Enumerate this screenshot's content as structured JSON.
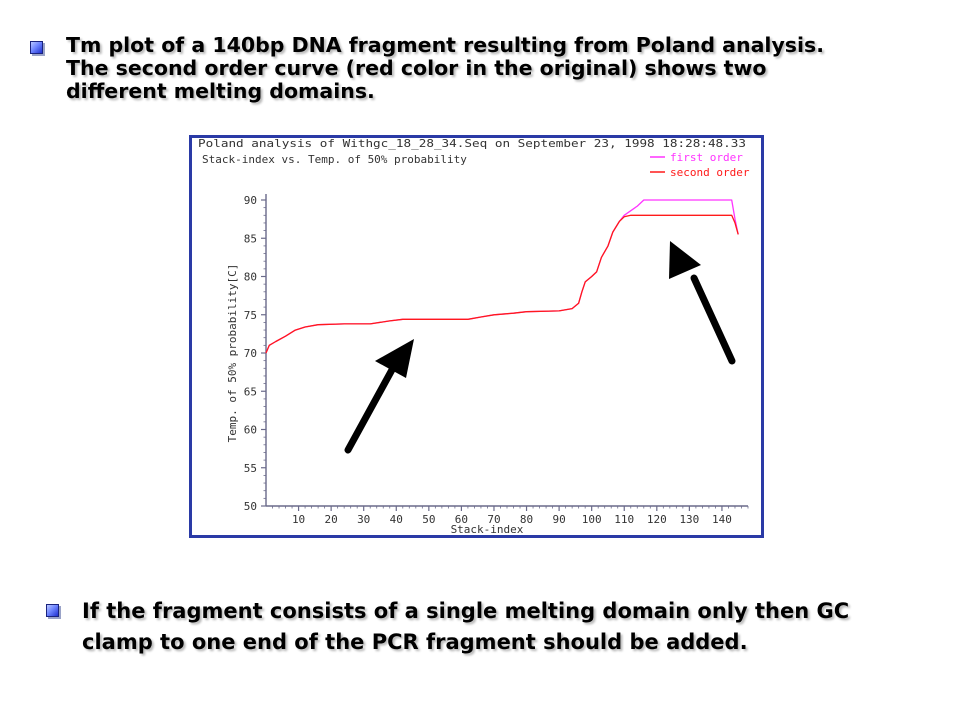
{
  "slide": {
    "top_text": [
      "Tm plot of a 140bp DNA fragment resulting from Poland analysis.",
      "The second order curve (red color in the original) shows two",
      "different melting domains."
    ],
    "bottom_text": [
      "If the fragment consists of a single melting domain only then GC",
      "clamp to one end of the PCR fragment should be added."
    ]
  },
  "chart_data": {
    "type": "line",
    "header_line1": "Poland analysis of Withgc_18_28_34.Seq on September 23, 1998  18:28:48.33",
    "title": "Stack-index vs. Temp. of 50% probability",
    "xlabel": "Stack-index",
    "ylabel": "Temp. of 50% probability[C]",
    "xlim": [
      0,
      148
    ],
    "ylim": [
      50,
      90
    ],
    "xticks": [
      10,
      20,
      30,
      40,
      50,
      60,
      70,
      80,
      90,
      100,
      110,
      120,
      130,
      140
    ],
    "yticks": [
      50,
      55,
      60,
      65,
      70,
      75,
      80,
      85,
      90
    ],
    "grid": false,
    "legend_position": "top-right",
    "series": [
      {
        "name": "first order",
        "color": "#ff33ff",
        "points": [
          [
            0,
            70
          ],
          [
            1,
            71
          ],
          [
            3,
            71.5
          ],
          [
            6,
            72.2
          ],
          [
            9,
            73
          ],
          [
            12,
            73.4
          ],
          [
            16,
            73.7
          ],
          [
            24,
            73.8
          ],
          [
            32,
            73.8
          ],
          [
            38,
            74.2
          ],
          [
            42,
            74.4
          ],
          [
            50,
            74.4
          ],
          [
            62,
            74.4
          ],
          [
            66,
            74.7
          ],
          [
            70,
            75
          ],
          [
            76,
            75.2
          ],
          [
            80,
            75.4
          ],
          [
            90,
            75.5
          ],
          [
            94,
            75.8
          ],
          [
            96,
            76.5
          ],
          [
            97,
            78
          ],
          [
            98,
            79.3
          ],
          [
            100,
            80
          ],
          [
            101.5,
            80.6
          ],
          [
            103,
            82.5
          ],
          [
            105,
            84
          ],
          [
            106.5,
            85.8
          ],
          [
            108.5,
            87.2
          ],
          [
            110,
            88
          ],
          [
            112,
            88.6
          ],
          [
            114,
            89.2
          ],
          [
            116,
            90
          ],
          [
            120,
            90
          ],
          [
            125,
            90
          ],
          [
            130,
            90
          ],
          [
            136,
            90
          ],
          [
            140,
            90
          ],
          [
            143,
            90
          ],
          [
            144,
            87.5
          ],
          [
            145,
            85.5
          ]
        ]
      },
      {
        "name": "second order",
        "color": "#ff1a1a",
        "points": [
          [
            0,
            70
          ],
          [
            1,
            71
          ],
          [
            3,
            71.5
          ],
          [
            6,
            72.2
          ],
          [
            9,
            73
          ],
          [
            12,
            73.4
          ],
          [
            16,
            73.7
          ],
          [
            24,
            73.8
          ],
          [
            32,
            73.8
          ],
          [
            38,
            74.2
          ],
          [
            42,
            74.4
          ],
          [
            50,
            74.4
          ],
          [
            62,
            74.4
          ],
          [
            66,
            74.7
          ],
          [
            70,
            75
          ],
          [
            76,
            75.2
          ],
          [
            80,
            75.4
          ],
          [
            90,
            75.5
          ],
          [
            94,
            75.8
          ],
          [
            96,
            76.5
          ],
          [
            97,
            78
          ],
          [
            98,
            79.3
          ],
          [
            100,
            80
          ],
          [
            101.5,
            80.6
          ],
          [
            103,
            82.5
          ],
          [
            105,
            84
          ],
          [
            106.5,
            85.8
          ],
          [
            108.5,
            87.2
          ],
          [
            110,
            87.8
          ],
          [
            112,
            88
          ],
          [
            120,
            88
          ],
          [
            130,
            88
          ],
          [
            140,
            88
          ],
          [
            143,
            88
          ],
          [
            144,
            87
          ],
          [
            145,
            85.5
          ]
        ]
      }
    ]
  }
}
